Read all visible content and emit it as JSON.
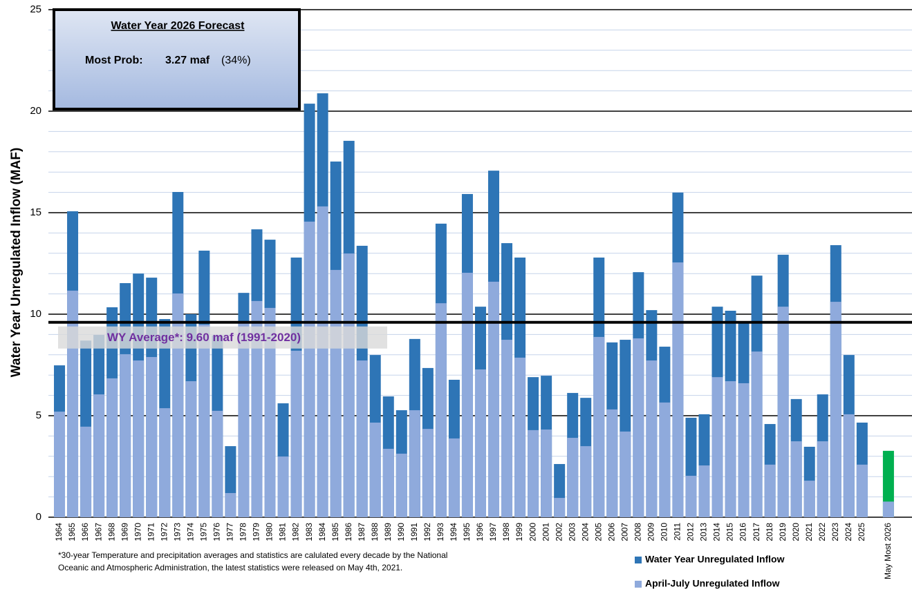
{
  "chart_data": {
    "type": "bar",
    "y_axis_label": "Water Year Unregulated Inflow (MAF)",
    "categories": [
      "1964",
      "1965",
      "1966",
      "1967",
      "1968",
      "1969",
      "1970",
      "1971",
      "1972",
      "1973",
      "1974",
      "1975",
      "1976",
      "1977",
      "1978",
      "1979",
      "1980",
      "1981",
      "1982",
      "1983",
      "1984",
      "1985",
      "1986",
      "1987",
      "1988",
      "1989",
      "1990",
      "1991",
      "1992",
      "1993",
      "1994",
      "1995",
      "1996",
      "1997",
      "1998",
      "1999",
      "2000",
      "2001",
      "2002",
      "2003",
      "2004",
      "2005",
      "2006",
      "2007",
      "2008",
      "2009",
      "2010",
      "2011",
      "2012",
      "2013",
      "2014",
      "2015",
      "2016",
      "2017",
      "2018",
      "2019",
      "2020",
      "2021",
      "2022",
      "2023",
      "2024",
      "2025",
      null,
      "May Most 2026"
    ],
    "series": [
      {
        "name": "Water Year Unregulated Inflow",
        "color": "#2e75b6",
        "values": [
          7.48,
          15.07,
          8.7,
          8.98,
          10.34,
          11.53,
          12.0,
          11.8,
          9.76,
          16.02,
          10.0,
          13.13,
          8.95,
          3.5,
          11.05,
          14.18,
          13.67,
          5.61,
          12.79,
          20.37,
          20.88,
          17.52,
          18.54,
          13.37,
          7.99,
          5.95,
          5.27,
          8.78,
          7.35,
          14.46,
          6.77,
          15.92,
          10.37,
          17.07,
          13.5,
          12.79,
          6.9,
          6.97,
          2.62,
          6.12,
          5.88,
          12.79,
          8.61,
          8.74,
          12.07,
          10.2,
          8.4,
          15.99,
          4.9,
          5.07,
          10.37,
          10.17,
          9.63,
          11.9,
          4.59,
          12.93,
          5.82,
          3.47,
          6.05,
          13.4,
          7.99,
          4.66,
          null,
          3.27
        ]
      },
      {
        "name": "April-July Unregulated Inflow",
        "color": "#8faadc",
        "values": [
          5.2,
          11.16,
          4.46,
          6.05,
          6.84,
          8.03,
          7.72,
          7.89,
          5.37,
          11.02,
          6.7,
          9.49,
          5.24,
          1.19,
          9.56,
          10.65,
          10.31,
          2.99,
          8.2,
          14.56,
          15.31,
          12.18,
          12.99,
          7.72,
          4.66,
          3.37,
          3.13,
          5.27,
          4.35,
          10.54,
          3.88,
          12.04,
          7.28,
          11.6,
          8.74,
          7.86,
          4.29,
          4.32,
          0.95,
          3.91,
          3.5,
          8.88,
          5.31,
          4.22,
          8.81,
          7.72,
          5.65,
          12.55,
          2.04,
          2.55,
          6.9,
          6.7,
          6.6,
          8.16,
          2.59,
          10.37,
          3.74,
          1.8,
          3.74,
          10.61,
          5.07,
          2.59,
          null,
          0.77
        ]
      }
    ],
    "forecast_color": "#00b050",
    "ylim": [
      0,
      25
    ],
    "yticks": [
      0,
      5,
      10,
      15,
      20,
      25
    ],
    "minor_yticks": [
      1,
      2,
      3,
      4,
      6,
      7,
      8,
      9,
      11,
      12,
      13,
      14,
      16,
      17,
      18,
      19,
      21,
      22,
      23,
      24
    ],
    "grid": true,
    "average": 9.6,
    "average_label": "WY Average*: 9.60 maf (1991-2020)",
    "forecast_box": {
      "title": "Water Year 2026 Forecast",
      "label": "Most Prob:",
      "value": "3.27 maf",
      "probability": "(34%)"
    },
    "footnote": [
      "*30-year Temperature and precipitation averages and statistics are calulated every decade by the National",
      "Oceanic and Atmospheric Administration, the latest statistics were released on May 4th, 2021."
    ],
    "legend": "bottom-right"
  }
}
